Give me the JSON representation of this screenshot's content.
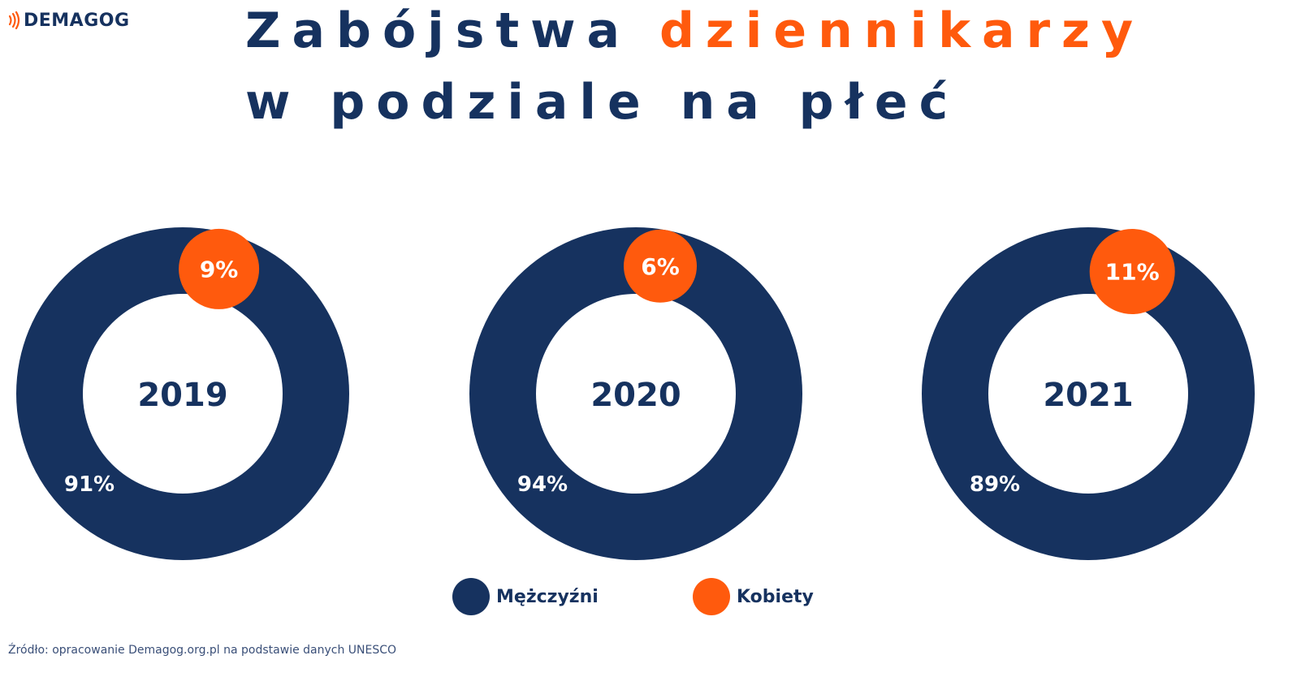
{
  "logo": {
    "text": "DEMAGOG"
  },
  "title": {
    "line1_part1": "Zabójstwa",
    "line1_accent": "dziennikarzy",
    "line2": "w podziale na płeć"
  },
  "colors": {
    "men": "#16325f",
    "women": "#ff5a0d",
    "text": "#16325f",
    "background": "#ffffff"
  },
  "chart_data": [
    {
      "type": "pie",
      "style": "donut",
      "title": "2019",
      "series": [
        {
          "name": "Mężczyźni",
          "value": 91,
          "label": "91%"
        },
        {
          "name": "Kobiety",
          "value": 9,
          "label": "9%"
        }
      ]
    },
    {
      "type": "pie",
      "style": "donut",
      "title": "2020",
      "series": [
        {
          "name": "Mężczyźni",
          "value": 94,
          "label": "94%"
        },
        {
          "name": "Kobiety",
          "value": 6,
          "label": "6%"
        }
      ]
    },
    {
      "type": "pie",
      "style": "donut",
      "title": "2021",
      "series": [
        {
          "name": "Mężczyźni",
          "value": 89,
          "label": "89%"
        },
        {
          "name": "Kobiety",
          "value": 11,
          "label": "11%"
        }
      ]
    }
  ],
  "legend": [
    {
      "label": "Mężczyźni",
      "color": "#16325f"
    },
    {
      "label": "Kobiety",
      "color": "#ff5a0d"
    }
  ],
  "source": "Źródło: opracowanie Demagog.org.pl na podstawie danych UNESCO"
}
